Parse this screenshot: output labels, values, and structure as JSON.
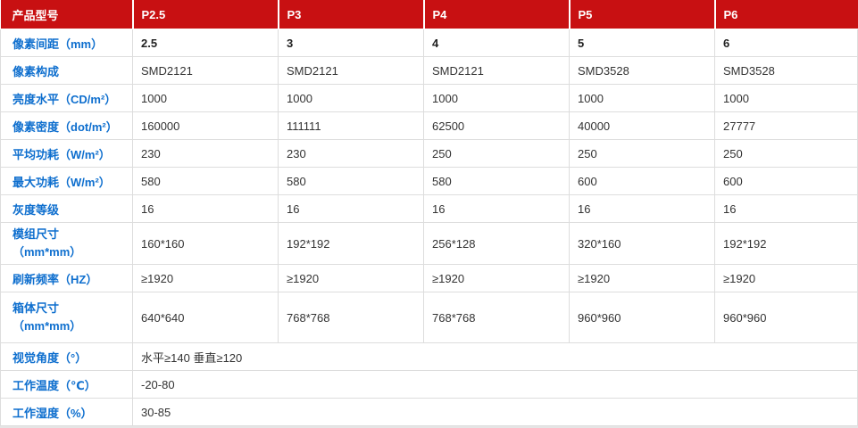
{
  "colors": {
    "header-red": "#c81012",
    "label-blue": "#0d6ece",
    "cell-text": "#333333",
    "border-gray": "#dddddd",
    "strip-gray": "#e5e5e5"
  },
  "table": {
    "header": {
      "label": "产品型号",
      "columns": [
        "P2.5",
        "P3",
        "P4",
        "P5",
        "P6"
      ]
    },
    "rows": [
      {
        "label": "像素间距（mm）",
        "values": [
          "2.5",
          "3",
          "4",
          "5",
          "6"
        ]
      },
      {
        "label": "像素构成",
        "values": [
          "SMD2121",
          "SMD2121",
          "SMD2121",
          "SMD3528",
          "SMD3528"
        ]
      },
      {
        "label": "亮度水平（CD/m²）",
        "values": [
          "1000",
          "1000",
          "1000",
          "1000",
          "1000"
        ]
      },
      {
        "label": "像素密度（dot/m²）",
        "values": [
          "160000",
          "111111",
          "62500",
          "40000",
          "27777"
        ]
      },
      {
        "label": "平均功耗（W/m²）",
        "values": [
          "230",
          "230",
          "250",
          "250",
          "250"
        ]
      },
      {
        "label": "最大功耗（W/m²）",
        "values": [
          "580",
          "580",
          "580",
          "600",
          "600"
        ]
      },
      {
        "label": "灰度等级",
        "values": [
          "16",
          "16",
          "16",
          "16",
          "16"
        ]
      },
      {
        "label_line1": "模组尺寸",
        "label_line2": "（mm*mm）",
        "values": [
          "160*160",
          "192*192",
          "256*128",
          "320*160",
          "192*192"
        ]
      },
      {
        "label": "刷新频率（HZ）",
        "values": [
          "≥1920",
          "≥1920",
          "≥1920",
          "≥1920",
          "≥1920"
        ]
      },
      {
        "label_line1": "箱体尺寸",
        "label_line2": "（mm*mm）",
        "values": [
          "640*640",
          "768*768",
          "768*768",
          "960*960",
          "960*960"
        ]
      },
      {
        "label": "视觉角度（°）",
        "span_value": "水平≥140 垂直≥120"
      },
      {
        "label": "工作温度（℃）",
        "span_value": "-20-80"
      },
      {
        "label": "工作湿度（%）",
        "span_value": "30-85"
      }
    ]
  }
}
